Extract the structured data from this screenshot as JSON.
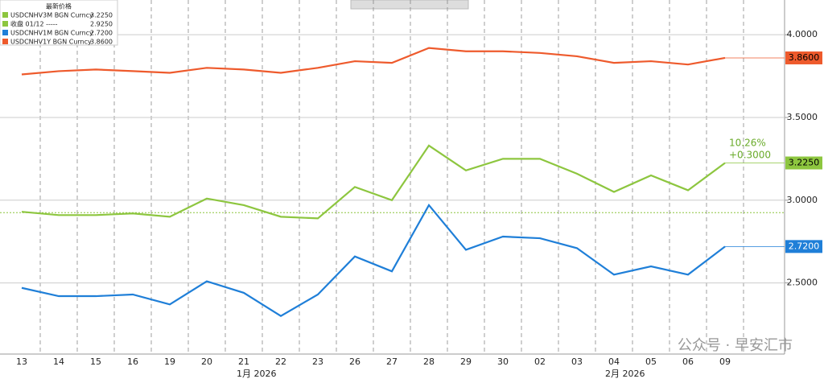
{
  "chart_data": {
    "type": "line",
    "legend_title": "最新价格",
    "categories": [
      "13",
      "14",
      "15",
      "16",
      "19",
      "20",
      "21",
      "22",
      "23",
      "26",
      "27",
      "28",
      "29",
      "30",
      "02",
      "03",
      "04",
      "05",
      "06",
      "09"
    ],
    "month_labels": [
      "1月 2026",
      "2月 2026"
    ],
    "series": [
      {
        "name": "USDCNHV3M BGN Curncy",
        "color": "#8dc63f",
        "values": [
          2.93,
          2.91,
          2.91,
          2.92,
          2.9,
          3.01,
          2.97,
          2.9,
          2.89,
          3.08,
          3.0,
          3.33,
          3.18,
          3.25,
          3.25,
          3.16,
          3.05,
          3.15,
          3.06,
          3.225
        ],
        "value_labels": [
          null,
          null,
          null,
          null,
          null,
          null,
          null,
          null,
          null,
          null,
          null,
          null,
          null,
          null,
          null,
          null,
          null,
          null,
          null,
          "3.2250"
        ]
      },
      {
        "name": "USDCNHV1M BGN Curncy",
        "color": "#1f7fd8",
        "values": [
          2.47,
          2.42,
          2.42,
          2.43,
          2.37,
          2.51,
          2.44,
          2.3,
          2.43,
          2.66,
          2.57,
          2.97,
          2.7,
          2.78,
          2.77,
          2.71,
          2.55,
          2.6,
          2.55,
          2.72
        ],
        "value_labels": [
          null,
          null,
          null,
          null,
          null,
          null,
          null,
          null,
          null,
          null,
          null,
          null,
          null,
          null,
          null,
          null,
          null,
          null,
          null,
          "2.7200"
        ]
      },
      {
        "name": "USDCNHV1Y BGN Curncy",
        "color": "#ee5a2c",
        "values": [
          3.76,
          3.78,
          3.79,
          3.78,
          3.77,
          3.8,
          3.79,
          3.77,
          3.8,
          3.84,
          3.83,
          3.92,
          3.9,
          3.9,
          3.89,
          3.87,
          3.83,
          3.84,
          3.82,
          3.86
        ],
        "value_labels": [
          null,
          null,
          null,
          null,
          null,
          null,
          null,
          null,
          null,
          null,
          null,
          null,
          null,
          null,
          null,
          null,
          null,
          null,
          null,
          "3.8600"
        ]
      }
    ],
    "reference": {
      "label": "收盘 01/12 -----",
      "value": 2.925,
      "value_label": "2.9250"
    },
    "annotations": [
      "10.26%",
      "+0.3000"
    ],
    "ylim": [
      2.07,
      4.21
    ],
    "yticks": [
      {
        "value": 2.5,
        "label": "2.5000"
      },
      {
        "value": 3.0,
        "label": "3.0000"
      },
      {
        "value": 3.5,
        "label": "3.5000"
      },
      {
        "value": 4.0,
        "label": "4.0000"
      }
    ],
    "grid": true,
    "watermark": "公众号 · 早安汇市"
  }
}
